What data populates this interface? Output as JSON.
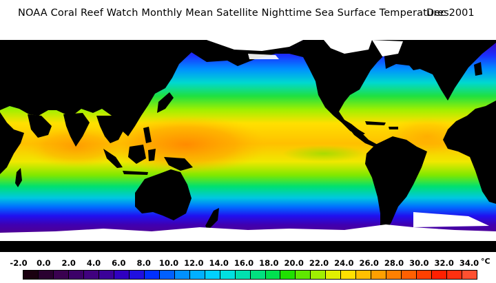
{
  "title": {
    "text": "NOAA Coral Reef Watch Monthly Mean Satellite Nighttime Sea Surface Temperatures",
    "date": "Dec 2001"
  },
  "colors": {
    "land": "#000000",
    "ice": "#ffffff",
    "warm_pool": "#ff9900",
    "tropics": "#ffe000",
    "subtropics": "#40e000",
    "temperate": "#00c0c0",
    "subpolar": "#0050ff",
    "polar": "#5000c0"
  },
  "legend": {
    "unit": "°C",
    "ticks": [
      "-2.0",
      "0.0",
      "2.0",
      "4.0",
      "6.0",
      "8.0",
      "10.0",
      "12.0",
      "14.0",
      "16.0",
      "18.0",
      "20.0",
      "22.0",
      "24.0",
      "26.0",
      "28.0",
      "30.0",
      "32.0",
      "34.0"
    ],
    "swatches": [
      "#1a0010",
      "#2a0030",
      "#3a0050",
      "#3c0068",
      "#40007f",
      "#3a0099",
      "#3000c0",
      "#2010e0",
      "#0030ff",
      "#0060ff",
      "#0090ff",
      "#00b0ff",
      "#00d0ff",
      "#00e0e0",
      "#00e0b0",
      "#00e080",
      "#00e050",
      "#20e000",
      "#60e800",
      "#a0f000",
      "#e0f000",
      "#ffe000",
      "#ffc000",
      "#ffa000",
      "#ff8000",
      "#ff6000",
      "#ff4000",
      "#ff2000",
      "#ff3010",
      "#ff5030"
    ]
  }
}
